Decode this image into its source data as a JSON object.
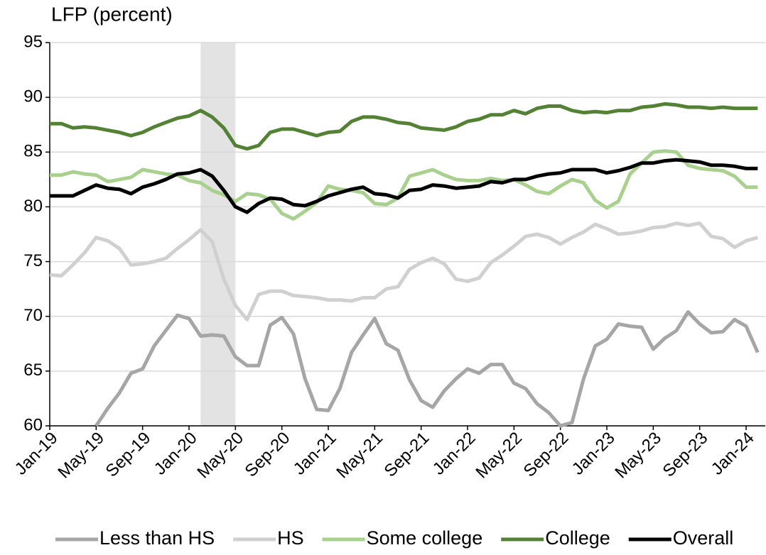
{
  "chart_data": {
    "type": "line",
    "y_axis_title": "LFP (percent)",
    "categories": [
      "Jan-19",
      null,
      null,
      null,
      "May-19",
      null,
      null,
      null,
      "Sep-19",
      null,
      null,
      null,
      "Jan-20",
      null,
      null,
      null,
      "May-20",
      null,
      null,
      null,
      "Sep-20",
      null,
      null,
      null,
      "Jan-21",
      null,
      null,
      null,
      "May-21",
      null,
      null,
      null,
      "Sep-21",
      null,
      null,
      null,
      "Jan-22",
      null,
      null,
      null,
      "May-22",
      null,
      null,
      null,
      "Sep-22",
      null,
      null,
      null,
      "Jan-23",
      null,
      null,
      null,
      "May-23",
      null,
      null,
      null,
      "Sep-23",
      null,
      null,
      null,
      "Jan-24",
      null
    ],
    "shade_x": [
      13,
      16
    ],
    "series": [
      {
        "name": "Less than HS",
        "color": "#a6a6a6",
        "values": [
          60.0,
          null,
          null,
          null,
          60.0,
          61.6,
          63.0,
          64.8,
          65.2,
          67.3,
          68.7,
          70.1,
          69.8,
          68.2,
          68.3,
          68.2,
          66.3,
          65.5,
          65.5,
          69.2,
          69.9,
          68.4,
          64.3,
          61.5,
          61.4,
          63.4,
          66.7,
          68.3,
          69.8,
          67.5,
          66.9,
          64.2,
          62.3,
          61.7,
          63.2,
          64.3,
          65.2,
          64.8,
          65.6,
          65.6,
          63.9,
          63.4,
          62.0,
          61.2,
          60.0,
          60.3,
          64.3,
          67.3,
          67.9,
          69.3,
          69.1,
          69.0,
          67.0,
          68.0,
          68.7,
          70.4,
          69.3,
          68.5,
          68.6,
          69.7,
          69.1,
          66.7
        ]
      },
      {
        "name": "HS",
        "color": "#d0d0d0",
        "values": [
          73.8,
          73.7,
          74.7,
          75.8,
          77.2,
          76.9,
          76.2,
          74.7,
          74.8,
          75.0,
          75.3,
          76.2,
          77.0,
          77.9,
          76.8,
          73.4,
          71.0,
          69.7,
          72.0,
          72.3,
          72.3,
          71.9,
          71.8,
          71.7,
          71.5,
          71.5,
          71.4,
          71.7,
          71.7,
          72.5,
          72.7,
          74.3,
          74.9,
          75.3,
          74.8,
          73.4,
          73.2,
          73.5,
          74.9,
          75.6,
          76.4,
          77.3,
          77.5,
          77.2,
          76.6,
          77.2,
          77.7,
          78.4,
          78.0,
          77.5,
          77.6,
          77.8,
          78.1,
          78.2,
          78.5,
          78.3,
          78.5,
          77.3,
          77.1,
          76.3,
          76.9,
          77.2
        ]
      },
      {
        "name": "Some college",
        "color": "#a9d18e",
        "values": [
          82.9,
          82.9,
          83.2,
          83.0,
          82.9,
          82.3,
          82.5,
          82.7,
          83.4,
          83.2,
          83.0,
          82.9,
          82.4,
          82.2,
          81.5,
          81.1,
          80.5,
          81.2,
          81.1,
          80.7,
          79.4,
          78.9,
          79.6,
          80.4,
          81.9,
          81.6,
          81.5,
          81.3,
          80.3,
          80.2,
          80.8,
          82.8,
          83.1,
          83.4,
          82.9,
          82.5,
          82.4,
          82.4,
          82.6,
          82.4,
          82.5,
          82.0,
          81.4,
          81.2,
          81.9,
          82.5,
          82.2,
          80.6,
          79.9,
          80.5,
          83.0,
          84.0,
          85.0,
          85.1,
          85.0,
          83.8,
          83.5,
          83.4,
          83.3,
          82.8,
          81.8,
          81.8
        ]
      },
      {
        "name": "College",
        "color": "#548235",
        "values": [
          87.6,
          87.6,
          87.2,
          87.3,
          87.2,
          87.0,
          86.8,
          86.5,
          86.8,
          87.3,
          87.7,
          88.1,
          88.3,
          88.8,
          88.2,
          87.2,
          85.6,
          85.3,
          85.6,
          86.8,
          87.1,
          87.1,
          86.8,
          86.5,
          86.8,
          86.9,
          87.8,
          88.2,
          88.2,
          88.0,
          87.7,
          87.6,
          87.2,
          87.1,
          87.0,
          87.3,
          87.8,
          88.0,
          88.4,
          88.4,
          88.8,
          88.5,
          89.0,
          89.2,
          89.2,
          88.8,
          88.6,
          88.7,
          88.6,
          88.8,
          88.8,
          89.1,
          89.2,
          89.4,
          89.3,
          89.1,
          89.1,
          89.0,
          89.1,
          89.0,
          89.0,
          89.0
        ]
      },
      {
        "name": "Overall",
        "color": "#000000",
        "values": [
          81.0,
          81.0,
          81.0,
          81.5,
          82.0,
          81.7,
          81.6,
          81.2,
          81.8,
          82.1,
          82.5,
          83.0,
          83.1,
          83.4,
          82.8,
          81.5,
          80.0,
          79.5,
          80.3,
          80.8,
          80.7,
          80.2,
          80.1,
          80.5,
          81.0,
          81.3,
          81.6,
          81.8,
          81.2,
          81.1,
          80.8,
          81.5,
          81.6,
          82.0,
          81.9,
          81.7,
          81.8,
          81.9,
          82.3,
          82.2,
          82.5,
          82.5,
          82.8,
          83.0,
          83.1,
          83.4,
          83.4,
          83.4,
          83.1,
          83.3,
          83.6,
          84.0,
          84.0,
          84.2,
          84.3,
          84.2,
          84.1,
          83.8,
          83.8,
          83.7,
          83.5,
          83.5
        ]
      }
    ],
    "ylim": [
      60,
      95
    ],
    "yticks": [
      60,
      65,
      70,
      75,
      80,
      85,
      90,
      95
    ],
    "grid": true,
    "legend": "bottom"
  }
}
